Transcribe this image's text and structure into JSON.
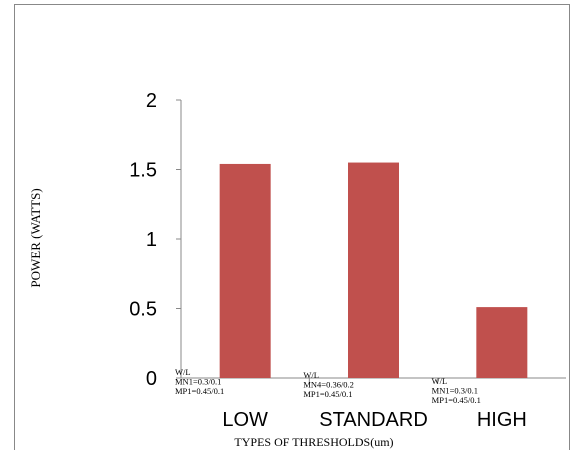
{
  "chart_data": {
    "type": "bar",
    "categories": [
      "LOW",
      "STANDARD",
      "HIGH"
    ],
    "values": [
      1.54,
      1.55,
      0.51
    ],
    "ylabel": "POWER  (WATTS)",
    "xlabel": "TYPES OF THRESHOLDS(um)",
    "ylim": [
      0,
      2
    ],
    "yticks": [
      "0",
      "0.5",
      "1",
      "1.5",
      "2"
    ],
    "bar_color": "#c0504d",
    "grid": false,
    "annotations": [
      [
        "W/L",
        "MN1=0.3/0.1",
        "MP1=0.45/0.1"
      ],
      [
        "W/L",
        "MN4=0.36/0.2",
        "MP1=0.45/0.1"
      ],
      [
        "W/L",
        "MN1=0.3/0.1",
        "MP1=0.45/0.1"
      ]
    ]
  }
}
